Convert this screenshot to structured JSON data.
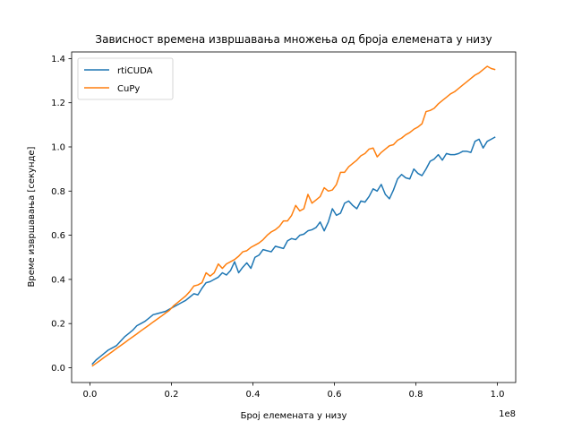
{
  "chart_data": {
    "type": "line",
    "title": "Зависност времена извршавања множења од броја елемената у низу",
    "xlabel": "Број елемената у низу",
    "ylabel": "Време извршавања [секунде]",
    "x_offset_text": "1e8",
    "xlim": [
      -0.045,
      1.045
    ],
    "ylim": [
      -0.067,
      1.43
    ],
    "x_ticks": [
      0.0,
      0.2,
      0.4,
      0.6,
      0.8,
      1.0
    ],
    "x_tick_labels": [
      "0.0",
      "0.2",
      "0.4",
      "0.6",
      "0.8",
      "1.0"
    ],
    "y_ticks": [
      0.0,
      0.2,
      0.4,
      0.6,
      0.8,
      1.0,
      1.2,
      1.4
    ],
    "y_tick_labels": [
      "0.0",
      "0.2",
      "0.4",
      "0.6",
      "0.8",
      "1.0",
      "1.2",
      "1.4"
    ],
    "grid": false,
    "legend_position": "top-left",
    "series": [
      {
        "name": "rtiCUDA",
        "color": "#1f77b4",
        "x": [
          0.005,
          0.015,
          0.025,
          0.035,
          0.045,
          0.055,
          0.065,
          0.075,
          0.085,
          0.095,
          0.105,
          0.115,
          0.125,
          0.135,
          0.145,
          0.155,
          0.165,
          0.175,
          0.185,
          0.195,
          0.205,
          0.215,
          0.225,
          0.235,
          0.245,
          0.255,
          0.265,
          0.275,
          0.285,
          0.295,
          0.305,
          0.315,
          0.325,
          0.335,
          0.345,
          0.355,
          0.365,
          0.375,
          0.385,
          0.395,
          0.405,
          0.415,
          0.425,
          0.435,
          0.445,
          0.455,
          0.465,
          0.475,
          0.485,
          0.495,
          0.505,
          0.515,
          0.525,
          0.535,
          0.545,
          0.555,
          0.565,
          0.575,
          0.585,
          0.595,
          0.605,
          0.615,
          0.625,
          0.635,
          0.645,
          0.655,
          0.665,
          0.675,
          0.685,
          0.695,
          0.705,
          0.715,
          0.725,
          0.735,
          0.745,
          0.755,
          0.765,
          0.775,
          0.785,
          0.795,
          0.805,
          0.815,
          0.825,
          0.835,
          0.845,
          0.855,
          0.865,
          0.875,
          0.885,
          0.895,
          0.905,
          0.915,
          0.925,
          0.935,
          0.945,
          0.955,
          0.965,
          0.975,
          0.985,
          0.995
        ],
        "y": [
          0.015,
          0.035,
          0.05,
          0.065,
          0.08,
          0.09,
          0.1,
          0.12,
          0.14,
          0.155,
          0.17,
          0.19,
          0.2,
          0.21,
          0.225,
          0.24,
          0.245,
          0.25,
          0.255,
          0.265,
          0.275,
          0.285,
          0.295,
          0.305,
          0.32,
          0.335,
          0.33,
          0.36,
          0.385,
          0.39,
          0.4,
          0.41,
          0.43,
          0.42,
          0.44,
          0.48,
          0.43,
          0.455,
          0.475,
          0.45,
          0.5,
          0.51,
          0.535,
          0.53,
          0.525,
          0.55,
          0.545,
          0.54,
          0.575,
          0.585,
          0.58,
          0.6,
          0.605,
          0.62,
          0.625,
          0.635,
          0.66,
          0.62,
          0.66,
          0.72,
          0.69,
          0.7,
          0.745,
          0.755,
          0.735,
          0.72,
          0.755,
          0.75,
          0.775,
          0.81,
          0.8,
          0.83,
          0.785,
          0.765,
          0.805,
          0.855,
          0.875,
          0.86,
          0.855,
          0.9,
          0.88,
          0.87,
          0.9,
          0.935,
          0.945,
          0.965,
          0.94,
          0.97,
          0.965,
          0.965,
          0.97,
          0.98,
          0.98,
          0.975,
          1.025,
          1.035,
          0.995,
          1.025,
          1.035,
          1.045
        ]
      },
      {
        "name": "CuPy",
        "color": "#ff7f0e",
        "x": [
          0.005,
          0.015,
          0.025,
          0.035,
          0.045,
          0.055,
          0.065,
          0.075,
          0.085,
          0.095,
          0.105,
          0.115,
          0.125,
          0.135,
          0.145,
          0.155,
          0.165,
          0.175,
          0.185,
          0.195,
          0.205,
          0.215,
          0.225,
          0.235,
          0.245,
          0.255,
          0.265,
          0.275,
          0.285,
          0.295,
          0.305,
          0.315,
          0.325,
          0.335,
          0.345,
          0.355,
          0.365,
          0.375,
          0.385,
          0.395,
          0.405,
          0.415,
          0.425,
          0.435,
          0.445,
          0.455,
          0.465,
          0.475,
          0.485,
          0.495,
          0.505,
          0.515,
          0.525,
          0.535,
          0.545,
          0.555,
          0.565,
          0.575,
          0.585,
          0.595,
          0.605,
          0.615,
          0.625,
          0.635,
          0.645,
          0.655,
          0.665,
          0.675,
          0.685,
          0.695,
          0.705,
          0.715,
          0.725,
          0.735,
          0.745,
          0.755,
          0.765,
          0.775,
          0.785,
          0.795,
          0.805,
          0.815,
          0.825,
          0.835,
          0.845,
          0.855,
          0.865,
          0.875,
          0.885,
          0.895,
          0.905,
          0.915,
          0.925,
          0.935,
          0.945,
          0.955,
          0.965,
          0.975,
          0.985,
          0.995
        ],
        "y": [
          0.007,
          0.02,
          0.033,
          0.047,
          0.06,
          0.073,
          0.087,
          0.1,
          0.113,
          0.127,
          0.14,
          0.153,
          0.167,
          0.18,
          0.193,
          0.207,
          0.22,
          0.233,
          0.247,
          0.26,
          0.28,
          0.295,
          0.31,
          0.325,
          0.345,
          0.37,
          0.375,
          0.385,
          0.43,
          0.415,
          0.43,
          0.47,
          0.45,
          0.47,
          0.48,
          0.49,
          0.505,
          0.525,
          0.53,
          0.545,
          0.555,
          0.565,
          0.58,
          0.6,
          0.615,
          0.625,
          0.64,
          0.665,
          0.665,
          0.69,
          0.735,
          0.71,
          0.72,
          0.785,
          0.745,
          0.76,
          0.775,
          0.815,
          0.8,
          0.805,
          0.83,
          0.885,
          0.885,
          0.91,
          0.925,
          0.94,
          0.96,
          0.97,
          0.99,
          0.995,
          0.955,
          0.975,
          0.99,
          1.005,
          1.01,
          1.03,
          1.04,
          1.055,
          1.065,
          1.08,
          1.09,
          1.105,
          1.16,
          1.165,
          1.175,
          1.195,
          1.21,
          1.225,
          1.24,
          1.25,
          1.265,
          1.28,
          1.295,
          1.31,
          1.325,
          1.335,
          1.35,
          1.365,
          1.355,
          1.35
        ]
      }
    ]
  }
}
